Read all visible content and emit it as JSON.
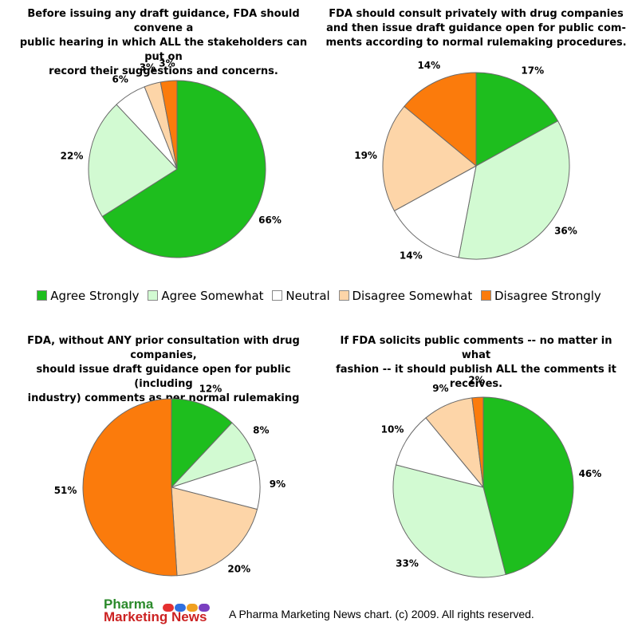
{
  "chart_data": [
    {
      "type": "pie",
      "title": "Before issuing any draft guidance, FDA should convene a\npublic hearing in which ALL the stakeholders can put on\nrecord their suggestions and concerns.",
      "categories": [
        "Agree Strongly",
        "Agree Somewhat",
        "Neutral",
        "Disagree Somewhat",
        "Disagree Strongly"
      ],
      "values": [
        66,
        22,
        6,
        3,
        3
      ],
      "labels": [
        "66%",
        "22%",
        "6%",
        "3%",
        "3%"
      ]
    },
    {
      "type": "pie",
      "title": "FDA should consult privately with drug companies\nand then issue draft guidance open for public com-\nments according to normal rulemaking procedures.",
      "categories": [
        "Agree Strongly",
        "Agree Somewhat",
        "Neutral",
        "Disagree Somewhat",
        "Disagree Strongly"
      ],
      "values": [
        17,
        36,
        14,
        19,
        14
      ],
      "labels": [
        "17%",
        "36%",
        "14%",
        "19%",
        "14%"
      ]
    },
    {
      "type": "pie",
      "title": "FDA, without ANY prior consultation with drug companies,\nshould issue draft guidance open for public (including\nindustry) comments as per normal rulemaking procedure.",
      "categories": [
        "Agree Strongly",
        "Agree Somewhat",
        "Neutral",
        "Disagree Somewhat",
        "Disagree Strongly"
      ],
      "values": [
        12,
        8,
        9,
        20,
        51
      ],
      "labels": [
        "12%",
        "8%",
        "9%",
        "20%",
        "51%"
      ]
    },
    {
      "type": "pie",
      "title": "If FDA solicits public comments -- no matter in what\nfashion -- it should publish ALL the comments it\nreceives.",
      "categories": [
        "Agree Strongly",
        "Agree Somewhat",
        "Neutral",
        "Disagree Somewhat",
        "Disagree Strongly"
      ],
      "values": [
        46,
        33,
        10,
        9,
        2
      ],
      "labels": [
        "46%",
        "33%",
        "10%",
        "9%",
        "2%"
      ]
    }
  ],
  "legend": [
    {
      "label": "Agree Strongly",
      "color": "#1ebe1e"
    },
    {
      "label": "Agree Somewhat",
      "color": "#d2fad2"
    },
    {
      "label": "Neutral",
      "color": "#ffffff"
    },
    {
      "label": "Disagree Somewhat",
      "color": "#fdd5a8"
    },
    {
      "label": "Disagree Strongly",
      "color": "#fb7b0c"
    }
  ],
  "logo": {
    "line1": "Pharma",
    "line2": "Marketing News"
  },
  "footer": "A Pharma Marketing News chart. (c) 2009. All rights reserved."
}
